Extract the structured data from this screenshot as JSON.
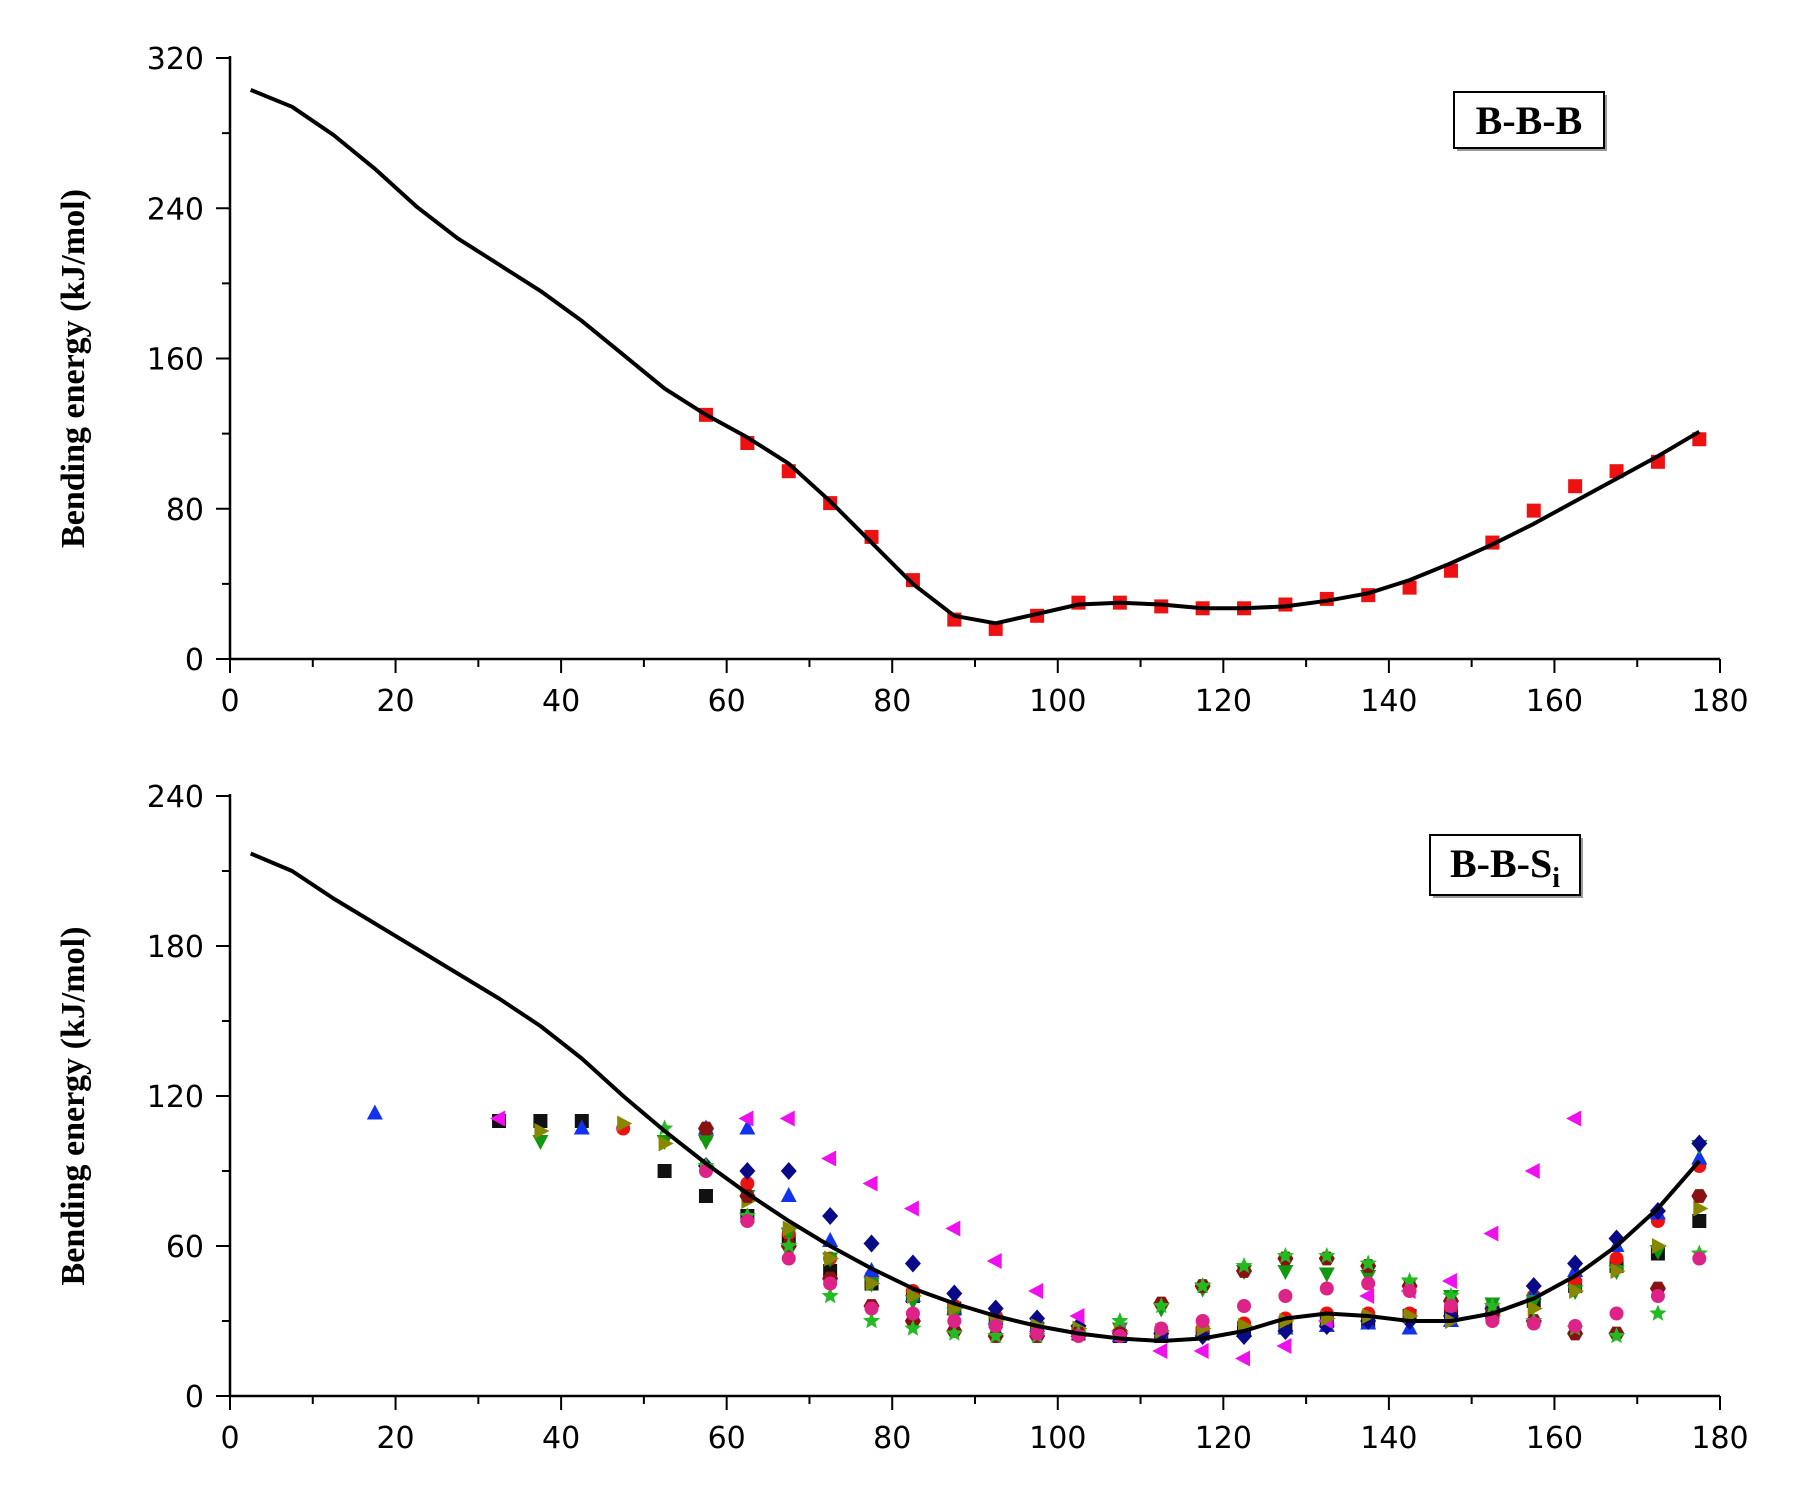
{
  "chart_data": [
    {
      "type": "line+scatter",
      "label": "B-B-B",
      "ylabel": "Bending energy (kJ/mol)",
      "xlabel": "",
      "xlim": [
        0,
        180
      ],
      "ylim": [
        0,
        320
      ],
      "xticks": [
        0,
        20,
        40,
        60,
        80,
        100,
        120,
        140,
        160,
        180
      ],
      "yticks": [
        0,
        80,
        160,
        240,
        320
      ],
      "line": {
        "name": "fit",
        "color": "#000000",
        "x": [
          2.5,
          7.5,
          12.5,
          17.5,
          22.5,
          27.5,
          32.5,
          37.5,
          42.5,
          47.5,
          52.5,
          57.5,
          62.5,
          67.5,
          72.5,
          77.5,
          82.5,
          87.5,
          92.5,
          97.5,
          102.5,
          107.5,
          112.5,
          117.5,
          122.5,
          127.5,
          132.5,
          137.5,
          142.5,
          147.5,
          152.5,
          157.5,
          162.5,
          167.5,
          172.5,
          177.5
        ],
        "y": [
          303,
          294,
          279,
          261,
          241,
          224,
          210,
          196,
          180,
          162,
          144,
          130,
          118,
          104,
          84,
          62,
          40,
          23,
          19,
          24,
          29,
          30,
          29,
          27,
          27,
          28,
          31,
          35,
          42,
          51,
          61,
          72,
          84,
          96,
          108,
          121
        ]
      },
      "series": [
        {
          "name": "data",
          "color": "#ee1111",
          "marker": "square",
          "x": [
            57.5,
            62.5,
            67.5,
            72.5,
            77.5,
            82.5,
            87.5,
            92.5,
            97.5,
            102.5,
            107.5,
            112.5,
            117.5,
            122.5,
            127.5,
            132.5,
            137.5,
            142.5,
            147.5,
            152.5,
            157.5,
            162.5,
            167.5,
            172.5,
            177.5
          ],
          "y": [
            130,
            115,
            100,
            83,
            65,
            42,
            21,
            16,
            23,
            30,
            30,
            28,
            27,
            27,
            29,
            32,
            34,
            38,
            47,
            62,
            79,
            92,
            100,
            105,
            117
          ]
        }
      ]
    },
    {
      "type": "line+scatter",
      "label": "B-B-Si",
      "label_main": "B-B-S",
      "label_sub": "i",
      "ylabel": "Bending energy (kJ/mol)",
      "xlabel": "",
      "xlim": [
        0,
        180
      ],
      "ylim": [
        0,
        240
      ],
      "xticks": [
        0,
        20,
        40,
        60,
        80,
        100,
        120,
        140,
        160,
        180
      ],
      "yticks": [
        0,
        60,
        120,
        180,
        240
      ],
      "line": {
        "name": "fit",
        "color": "#000000",
        "x": [
          2.5,
          7.5,
          12.5,
          17.5,
          22.5,
          27.5,
          32.5,
          37.5,
          42.5,
          47.5,
          52.5,
          57.5,
          62.5,
          67.5,
          72.5,
          77.5,
          82.5,
          87.5,
          92.5,
          97.5,
          102.5,
          107.5,
          112.5,
          117.5,
          122.5,
          127.5,
          132.5,
          137.5,
          142.5,
          147.5,
          152.5,
          157.5,
          162.5,
          167.5,
          172.5,
          177.5
        ],
        "y": [
          217,
          210,
          199,
          189,
          179,
          169,
          159,
          148,
          135,
          120,
          106,
          93,
          81,
          70,
          60,
          51,
          43,
          37,
          32,
          28,
          25,
          23,
          22,
          23,
          26,
          31,
          33,
          32,
          30,
          30,
          33,
          39,
          48,
          60,
          75,
          94
        ]
      },
      "series": [
        {
          "name": "black squares",
          "color": "#111111",
          "marker": "square",
          "x": [
            32.5,
            37.5,
            42.5,
            52.5,
            57.5,
            62.5,
            67.5,
            72.5,
            77.5,
            82.5,
            87.5,
            92.5,
            97.5,
            102.5,
            107.5,
            112.5,
            117.5,
            122.5,
            127.5,
            132.5,
            137.5,
            142.5,
            147.5,
            152.5,
            157.5,
            162.5,
            167.5,
            172.5,
            177.5
          ],
          "y": [
            110,
            110,
            110,
            90,
            80,
            72,
            62,
            50,
            45,
            40,
            35,
            30,
            27,
            25,
            24,
            24,
            25,
            27,
            28,
            30,
            30,
            32,
            33,
            33,
            38,
            44,
            52,
            57,
            70
          ]
        },
        {
          "name": "red circles",
          "color": "#ee1111",
          "marker": "circle",
          "x": [
            47.5,
            57.5,
            62.5,
            67.5,
            72.5,
            77.5,
            82.5,
            87.5,
            92.5,
            97.5,
            102.5,
            107.5,
            112.5,
            117.5,
            122.5,
            127.5,
            132.5,
            137.5,
            142.5,
            147.5,
            152.5,
            157.5,
            162.5,
            167.5,
            172.5,
            177.5
          ],
          "y": [
            107,
            104,
            85,
            65,
            55,
            48,
            42,
            36,
            32,
            28,
            26,
            25,
            25,
            27,
            29,
            31,
            33,
            33,
            33,
            35,
            36,
            40,
            46,
            55,
            70,
            92
          ]
        },
        {
          "name": "blue up-triangles",
          "color": "#1133ee",
          "marker": "triangle-up",
          "x": [
            17.5,
            42.5,
            57.5,
            62.5,
            67.5,
            72.5,
            77.5,
            82.5,
            87.5,
            92.5,
            97.5,
            102.5,
            107.5,
            112.5,
            117.5,
            122.5,
            127.5,
            132.5,
            137.5,
            142.5,
            147.5,
            152.5,
            157.5,
            162.5,
            167.5,
            172.5,
            177.5
          ],
          "y": [
            113,
            107,
            107,
            107,
            80,
            62,
            50,
            40,
            35,
            31,
            28,
            26,
            24,
            24,
            25,
            26,
            27,
            28,
            29,
            27,
            30,
            35,
            41,
            50,
            60,
            73,
            95
          ]
        },
        {
          "name": "green down-triangles",
          "color": "#119911",
          "marker": "triangle-down",
          "x": [
            37.5,
            52.5,
            57.5,
            62.5,
            67.5,
            72.5,
            77.5,
            82.5,
            87.5,
            92.5,
            97.5,
            102.5,
            107.5,
            112.5,
            117.5,
            122.5,
            127.5,
            132.5,
            137.5,
            142.5,
            147.5,
            152.5,
            157.5,
            162.5,
            167.5,
            172.5,
            177.5
          ],
          "y": [
            102,
            102,
            102,
            80,
            65,
            55,
            45,
            38,
            33,
            30,
            27,
            26,
            27,
            35,
            43,
            50,
            50,
            49,
            48,
            45,
            40,
            37,
            38,
            42,
            50,
            58,
            100
          ]
        },
        {
          "name": "navy diamonds",
          "color": "#0a0a88",
          "marker": "diamond",
          "x": [
            57.5,
            62.5,
            67.5,
            72.5,
            77.5,
            82.5,
            87.5,
            92.5,
            97.5,
            102.5,
            107.5,
            112.5,
            117.5,
            122.5,
            127.5,
            132.5,
            137.5,
            142.5,
            147.5,
            152.5,
            157.5,
            162.5,
            167.5,
            172.5,
            177.5
          ],
          "y": [
            92,
            90,
            90,
            72,
            61,
            53,
            41,
            35,
            31,
            28,
            26,
            25,
            24,
            24,
            26,
            28,
            30,
            30,
            32,
            35,
            44,
            53,
            63,
            74,
            101
          ]
        },
        {
          "name": "magenta left-triangles",
          "color": "#ee11ee",
          "marker": "triangle-left",
          "x": [
            32.5,
            62.5,
            67.5,
            72.5,
            77.5,
            82.5,
            87.5,
            92.5,
            97.5,
            102.5,
            107.5,
            112.5,
            117.5,
            122.5,
            127.5,
            132.5,
            137.5,
            142.5,
            147.5,
            152.5,
            157.5,
            162.5
          ],
          "y": [
            111,
            111,
            111,
            95,
            85,
            75,
            67,
            54,
            42,
            32,
            26,
            18,
            18,
            15,
            20,
            30,
            40,
            42,
            46,
            65,
            90,
            111
          ]
        },
        {
          "name": "olive right-triangles",
          "color": "#888800",
          "marker": "triangle-right",
          "x": [
            37.5,
            47.5,
            52.5,
            57.5,
            62.5,
            67.5,
            72.5,
            77.5,
            82.5,
            87.5,
            92.5,
            97.5,
            102.5,
            107.5,
            112.5,
            117.5,
            122.5,
            127.5,
            132.5,
            137.5,
            142.5,
            147.5,
            152.5,
            157.5,
            162.5,
            167.5,
            172.5,
            177.5
          ],
          "y": [
            106,
            109,
            101,
            92,
            78,
            67,
            55,
            45,
            40,
            35,
            30,
            28,
            27,
            26,
            26,
            27,
            28,
            30,
            31,
            32,
            32,
            30,
            32,
            35,
            42,
            50,
            60,
            75
          ]
        },
        {
          "name": "dark red hexagons",
          "color": "#881111",
          "marker": "hexagon",
          "x": [
            57.5,
            62.5,
            67.5,
            72.5,
            77.5,
            82.5,
            87.5,
            92.5,
            97.5,
            102.5,
            107.5,
            112.5,
            117.5,
            122.5,
            127.5,
            132.5,
            137.5,
            142.5,
            147.5,
            152.5,
            157.5,
            162.5,
            167.5,
            172.5,
            177.5
          ],
          "y": [
            107,
            80,
            60,
            47,
            36,
            30,
            26,
            24,
            24,
            25,
            25,
            37,
            44,
            50,
            55,
            55,
            52,
            44,
            38,
            33,
            30,
            25,
            25,
            43,
            80
          ]
        },
        {
          "name": "bright green stars",
          "color": "#22bb22",
          "marker": "star",
          "x": [
            52.5,
            57.5,
            62.5,
            67.5,
            72.5,
            77.5,
            82.5,
            87.5,
            92.5,
            97.5,
            102.5,
            107.5,
            112.5,
            117.5,
            122.5,
            127.5,
            132.5,
            137.5,
            142.5,
            147.5,
            152.5,
            157.5,
            162.5,
            167.5,
            172.5,
            177.5
          ],
          "y": [
            107,
            92,
            72,
            60,
            40,
            30,
            27,
            25,
            24,
            24,
            25,
            30,
            36,
            44,
            52,
            56,
            56,
            53,
            46,
            40,
            36,
            30,
            27,
            24,
            33,
            57
          ]
        },
        {
          "name": "pink circles",
          "color": "#dd2288",
          "marker": "circle",
          "x": [
            57.5,
            62.5,
            67.5,
            72.5,
            77.5,
            82.5,
            87.5,
            92.5,
            97.5,
            102.5,
            107.5,
            112.5,
            117.5,
            122.5,
            127.5,
            132.5,
            137.5,
            142.5,
            147.5,
            152.5,
            157.5,
            162.5,
            167.5,
            172.5,
            177.5
          ],
          "y": [
            90,
            70,
            55,
            45,
            35,
            33,
            30,
            28,
            25,
            24,
            24,
            27,
            30,
            36,
            40,
            43,
            45,
            42,
            36,
            30,
            29,
            28,
            33,
            40,
            55
          ]
        }
      ]
    }
  ]
}
